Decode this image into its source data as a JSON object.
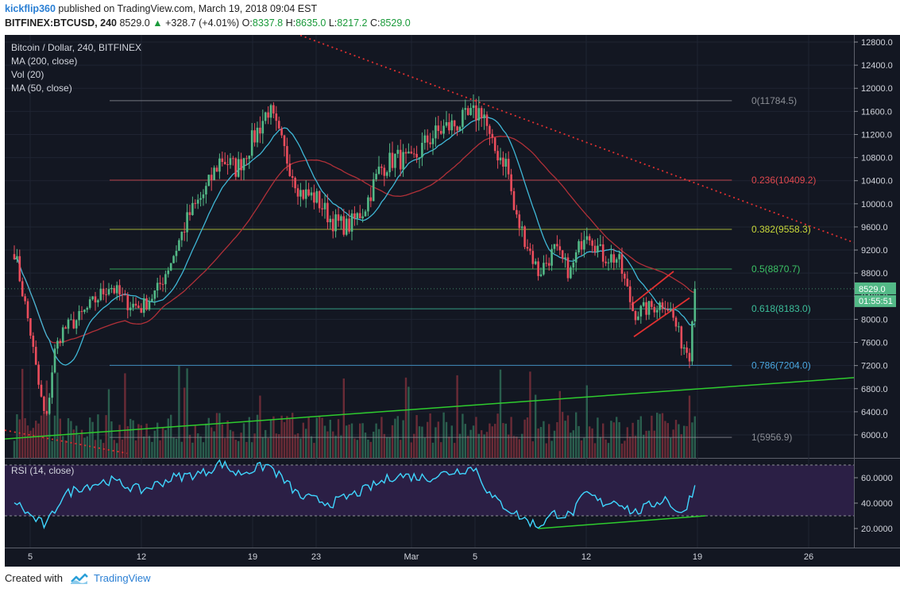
{
  "header": {
    "author": "kickflip360",
    "published_text": "published on TradingView.com, March 19, 2018 09:04 EST",
    "symbol": "BITFINEX:BTCUSD, 240",
    "last": "8529.0",
    "up_arrow": "▲",
    "change": "+328.7 (+4.01%)",
    "o_label": "O:",
    "o_value": "8337.8",
    "h_label": "H:",
    "h_value": "8635.0",
    "l_label": "L:",
    "l_value": "8217.2",
    "c_label": "C:",
    "c_value": "8529.0"
  },
  "legend": {
    "title": "Bitcoin / Dollar, 240, BITFINEX",
    "items": [
      "MA (200, close)",
      "Vol (20)",
      "MA (50, close)"
    ]
  },
  "rsi_label": "RSI (14, close)",
  "price_tag": "8529.0",
  "time_tag": "01:55:51",
  "footer": {
    "created_with": "Created with",
    "brand": "TradingView"
  },
  "colors": {
    "background": "#131722",
    "up": "#53b987",
    "down": "#eb4d5c",
    "ma50": "#3fb7d6",
    "ma200": "#b03038",
    "trend_green": "#2ecc2e",
    "trend_red": "#e03030",
    "rsi": "#3fd6ff",
    "rsi_band": "#2b1f45"
  },
  "chart_data": {
    "type": "candlestick",
    "title": "Bitcoin / Dollar, 240, BITFINEX",
    "y_ticks": [
      12800,
      12400,
      12000,
      11600,
      11200,
      10800,
      10400,
      10000,
      9600,
      9200,
      8800,
      8400,
      8000,
      7600,
      7200,
      6800,
      6400,
      6000
    ],
    "y_tick_labels": [
      "12800.0",
      "12400.0",
      "12000.0",
      "11600.0",
      "11200.0",
      "10800.0",
      "10400.0",
      "10000.0",
      "9600.0",
      "9200.0",
      "8800.0",
      "8400.0",
      "8000.0",
      "7600.0",
      "7200.0",
      "6800.0",
      "6400.0",
      "6000.0"
    ],
    "ylim": [
      5660,
      12890
    ],
    "x_tick_labels": [
      "5",
      "12",
      "19",
      "23",
      "Mar",
      "5",
      "12",
      "19",
      "26"
    ],
    "x_ticks": [
      "2018-02-05",
      "2018-02-12",
      "2018-02-19",
      "2018-02-23",
      "2018-03-01",
      "2018-03-05",
      "2018-03-12",
      "2018-03-19",
      "2018-03-26"
    ],
    "fibonacci": [
      {
        "level": "0",
        "price": 11784.5,
        "label": "0(11784.5)",
        "color": "#8c8f96"
      },
      {
        "level": "0.236",
        "price": 10409.2,
        "label": "0.236(10409.2)",
        "color": "#e0484e"
      },
      {
        "level": "0.382",
        "price": 9558.3,
        "label": "0.382(9558.3)",
        "color": "#c8d83a"
      },
      {
        "level": "0.5",
        "price": 8870.7,
        "label": "0.5(8870.7)",
        "color": "#3cc466"
      },
      {
        "level": "0.618",
        "price": 8183.0,
        "label": "0.618(8183.0)",
        "color": "#3cbf9a"
      },
      {
        "level": "0.786",
        "price": 7204.0,
        "label": "0.786(7204.0)",
        "color": "#4aa7e0"
      },
      {
        "level": "1",
        "price": 5956.9,
        "label": "1(5956.9)",
        "color": "#8c8f96"
      }
    ],
    "ohlc_path": [
      {
        "date": "2018-02-04",
        "price": 9200
      },
      {
        "date": "2018-02-05",
        "price": 7800
      },
      {
        "date": "2018-02-05T12:00",
        "price": 6900
      },
      {
        "date": "2018-02-06",
        "price": 6200
      },
      {
        "date": "2018-02-06T12:00",
        "price": 7400
      },
      {
        "date": "2018-02-07",
        "price": 7800
      },
      {
        "date": "2018-02-08",
        "price": 8000
      },
      {
        "date": "2018-02-09",
        "price": 8300
      },
      {
        "date": "2018-02-10",
        "price": 8600
      },
      {
        "date": "2018-02-11",
        "price": 8300
      },
      {
        "date": "2018-02-12",
        "price": 8200
      },
      {
        "date": "2018-02-13",
        "price": 8500
      },
      {
        "date": "2018-02-14",
        "price": 9100
      },
      {
        "date": "2018-02-15",
        "price": 9800
      },
      {
        "date": "2018-02-16",
        "price": 10200
      },
      {
        "date": "2018-02-17",
        "price": 10800
      },
      {
        "date": "2018-02-18",
        "price": 10600
      },
      {
        "date": "2018-02-19",
        "price": 11100
      },
      {
        "date": "2018-02-20",
        "price": 11650
      },
      {
        "date": "2018-02-21",
        "price": 10900
      },
      {
        "date": "2018-02-22",
        "price": 10200
      },
      {
        "date": "2018-02-23",
        "price": 10100
      },
      {
        "date": "2018-02-24",
        "price": 9700
      },
      {
        "date": "2018-02-25",
        "price": 9600
      },
      {
        "date": "2018-02-26",
        "price": 9900
      },
      {
        "date": "2018-02-27",
        "price": 10600
      },
      {
        "date": "2018-02-28",
        "price": 10800
      },
      {
        "date": "2018-03-01",
        "price": 10700
      },
      {
        "date": "2018-03-02",
        "price": 11100
      },
      {
        "date": "2018-03-03",
        "price": 11300
      },
      {
        "date": "2018-03-04",
        "price": 11400
      },
      {
        "date": "2018-03-05",
        "price": 11550
      },
      {
        "date": "2018-03-05T12:00",
        "price": 11650
      },
      {
        "date": "2018-03-06",
        "price": 11000
      },
      {
        "date": "2018-03-07",
        "price": 10700
      },
      {
        "date": "2018-03-07T12:00",
        "price": 9800
      },
      {
        "date": "2018-03-08",
        "price": 9500
      },
      {
        "date": "2018-03-09",
        "price": 8800
      },
      {
        "date": "2018-03-10",
        "price": 9200
      },
      {
        "date": "2018-03-11",
        "price": 8800
      },
      {
        "date": "2018-03-12",
        "price": 9600
      },
      {
        "date": "2018-03-13",
        "price": 9100
      },
      {
        "date": "2018-03-14",
        "price": 9050
      },
      {
        "date": "2018-03-15",
        "price": 8100
      },
      {
        "date": "2018-03-16",
        "price": 8200
      },
      {
        "date": "2018-03-17",
        "price": 8300
      },
      {
        "date": "2018-03-17T12:00",
        "price": 8000
      },
      {
        "date": "2018-03-18",
        "price": 7600
      },
      {
        "date": "2018-03-18T12:00",
        "price": 7400
      },
      {
        "date": "2018-03-18T16:00",
        "price": 8100
      },
      {
        "date": "2018-03-19",
        "price": 8529
      }
    ],
    "rsi": {
      "name": "RSI (14, close)",
      "y_ticks": [
        60,
        40,
        20
      ],
      "y_tick_labels": [
        "60.0000",
        "40.0000",
        "20.0000"
      ],
      "band": [
        30,
        70
      ],
      "path": [
        {
          "date": "2018-02-04",
          "value": 42
        },
        {
          "date": "2018-02-05",
          "value": 30
        },
        {
          "date": "2018-02-06",
          "value": 22
        },
        {
          "date": "2018-02-07",
          "value": 45
        },
        {
          "date": "2018-02-08",
          "value": 52
        },
        {
          "date": "2018-02-10",
          "value": 58
        },
        {
          "date": "2018-02-12",
          "value": 50
        },
        {
          "date": "2018-02-14",
          "value": 60
        },
        {
          "date": "2018-02-16",
          "value": 64
        },
        {
          "date": "2018-02-17",
          "value": 72
        },
        {
          "date": "2018-02-18",
          "value": 63
        },
        {
          "date": "2018-02-20",
          "value": 70
        },
        {
          "date": "2018-02-22",
          "value": 45
        },
        {
          "date": "2018-02-24",
          "value": 40
        },
        {
          "date": "2018-02-26",
          "value": 50
        },
        {
          "date": "2018-02-28",
          "value": 62
        },
        {
          "date": "2018-03-02",
          "value": 60
        },
        {
          "date": "2018-03-04",
          "value": 66
        },
        {
          "date": "2018-03-05",
          "value": 68
        },
        {
          "date": "2018-03-06",
          "value": 45
        },
        {
          "date": "2018-03-08",
          "value": 28
        },
        {
          "date": "2018-03-09",
          "value": 22
        },
        {
          "date": "2018-03-10",
          "value": 32
        },
        {
          "date": "2018-03-11",
          "value": 30
        },
        {
          "date": "2018-03-12",
          "value": 48
        },
        {
          "date": "2018-03-13",
          "value": 40
        },
        {
          "date": "2018-03-14",
          "value": 42
        },
        {
          "date": "2018-03-15",
          "value": 32
        },
        {
          "date": "2018-03-16",
          "value": 38
        },
        {
          "date": "2018-03-17",
          "value": 44
        },
        {
          "date": "2018-03-18",
          "value": 30
        },
        {
          "date": "2018-03-18T16:00",
          "value": 48
        },
        {
          "date": "2018-03-19",
          "value": 58
        }
      ]
    }
  }
}
